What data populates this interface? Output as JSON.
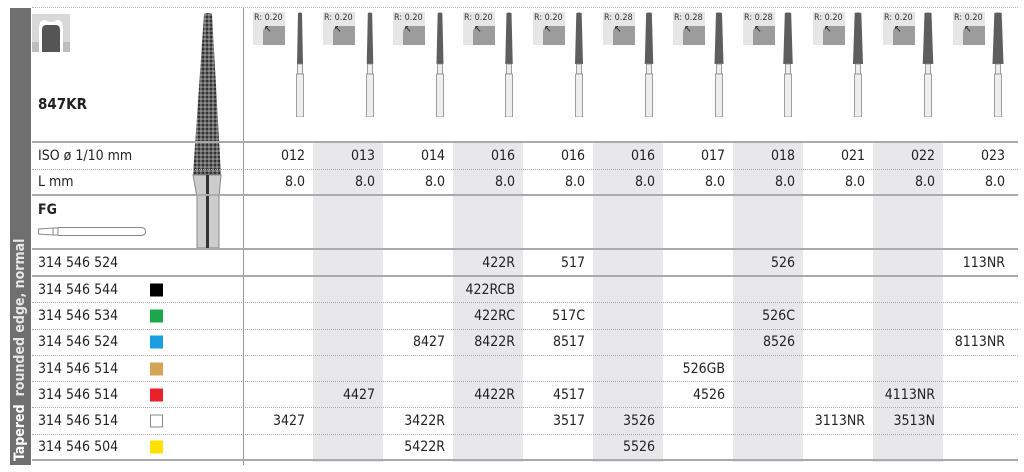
{
  "side_label": {
    "bold": "Tapered",
    "rest": "rounded edge, normal"
  },
  "product": {
    "code": "847KR",
    "shank": "FG"
  },
  "radii": [
    "R: 0.20",
    "R: 0.20",
    "R: 0.20",
    "R: 0.20",
    "R: 0.20",
    "R: 0.28",
    "R: 0.28",
    "R: 0.28",
    "R: 0.20",
    "R: 0.20",
    "R: 0.20"
  ],
  "iso": {
    "label": "ISO ø 1/10 mm",
    "values": [
      "012",
      "013",
      "014",
      "016",
      "016",
      "016",
      "017",
      "018",
      "021",
      "022",
      "023"
    ]
  },
  "length": {
    "label": "L mm",
    "values": [
      "8.0",
      "8.0",
      "8.0",
      "8.0",
      "8.0",
      "8.0",
      "8.0",
      "8.0",
      "8.0",
      "8.0",
      "8.0"
    ]
  },
  "rows": [
    {
      "ref": "314 546 524",
      "color": null,
      "cells": [
        "",
        "",
        "",
        "422R",
        "517",
        "",
        "",
        "526",
        "",
        "",
        "113NR"
      ]
    },
    {
      "ref": "314 546 544",
      "color": "#000000",
      "cells": [
        "",
        "",
        "",
        "422RCB",
        "",
        "",
        "",
        "",
        "",
        "",
        ""
      ]
    },
    {
      "ref": "314 546 534",
      "color": "#1aa84a",
      "cells": [
        "",
        "",
        "",
        "422RC",
        "517C",
        "",
        "",
        "526C",
        "",
        "",
        ""
      ]
    },
    {
      "ref": "314 546 524",
      "color": "#1a9ee0",
      "cells": [
        "",
        "",
        "8427",
        "8422R",
        "8517",
        "",
        "",
        "8526",
        "",
        "",
        "8113NR"
      ]
    },
    {
      "ref": "314 546 514",
      "color": "#d4a556",
      "cells": [
        "",
        "",
        "",
        "",
        "",
        "",
        "526GB",
        "",
        "",
        "",
        ""
      ]
    },
    {
      "ref": "314 546 514",
      "color": "#e8202a",
      "cells": [
        "",
        "4427",
        "",
        "4422R",
        "4517",
        "",
        "4526",
        "",
        "",
        "4113NR",
        ""
      ]
    },
    {
      "ref": "314 546 514",
      "color": "#ffffff",
      "cells": [
        "3427",
        "",
        "3422R",
        "",
        "3517",
        "3526",
        "",
        "",
        "3113NR",
        "3513N",
        ""
      ]
    },
    {
      "ref": "314 546 504",
      "color": "#ffe000",
      "cells": [
        "",
        "",
        "5422R",
        "",
        "",
        "5526",
        "",
        "",
        "",
        "",
        ""
      ]
    }
  ]
}
